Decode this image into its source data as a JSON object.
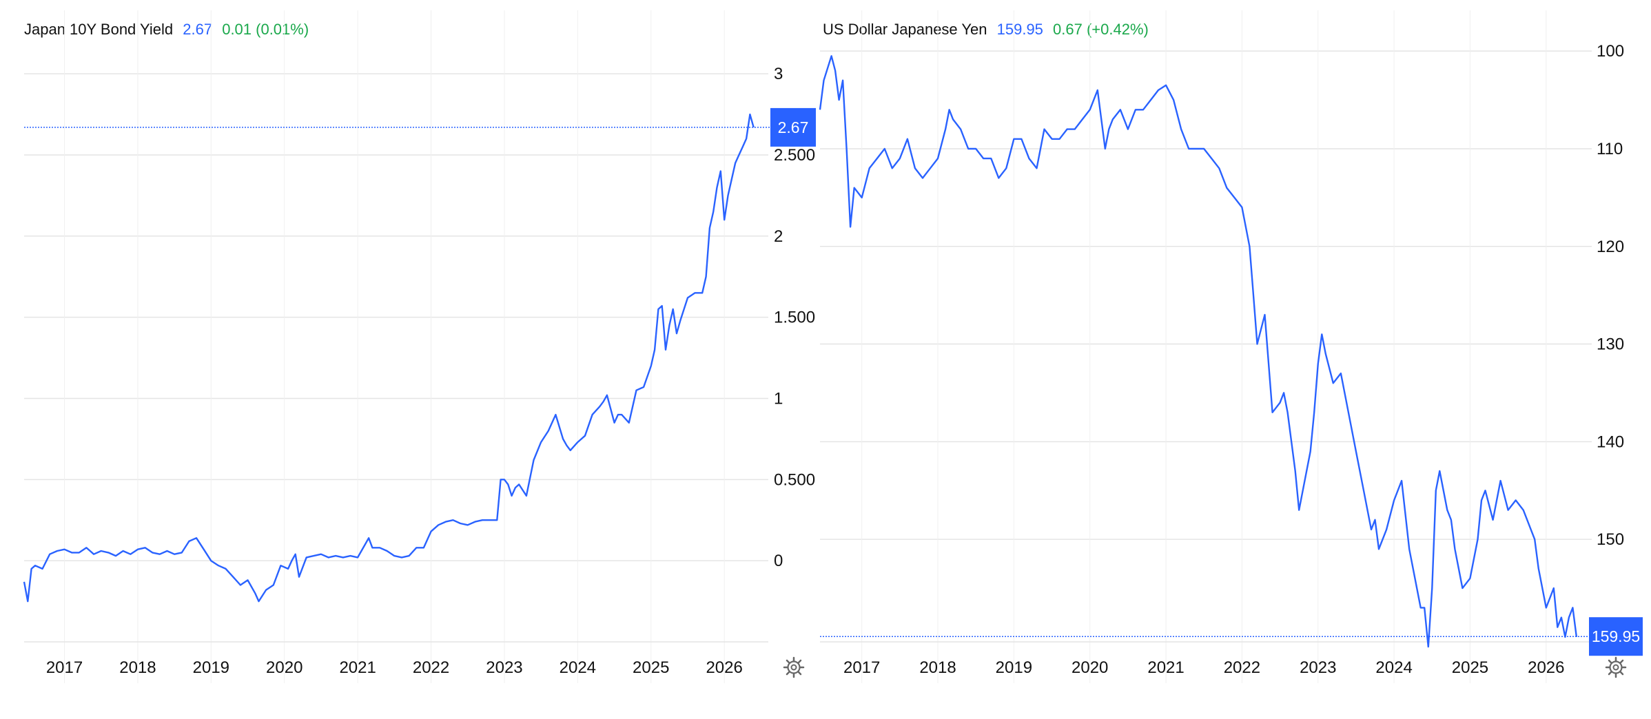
{
  "colors": {
    "line": "#2962ff",
    "up": "#1aa84b",
    "grid": "#e4e4e4",
    "badge": "#2962ff"
  },
  "icons": {
    "settings": "gear-icon"
  },
  "chart_data": [
    {
      "type": "line",
      "title": "Japan 10Y Bond Yield",
      "last_value": "2.67",
      "change": "0.01 (0.01%)",
      "badge_label": "2.67",
      "badge_value": 2.67,
      "xlim": [
        2016.45,
        2026.6
      ],
      "ylim": [
        -0.5,
        3.2
      ],
      "y_reversed": false,
      "x_ticks": [
        2017,
        2018,
        2019,
        2020,
        2021,
        2022,
        2023,
        2024,
        2025,
        2026
      ],
      "x_tick_labels": [
        "2017",
        "2018",
        "2019",
        "2020",
        "2021",
        "2022",
        "2023",
        "2024",
        "2025",
        "2026"
      ],
      "y_ticks": [
        0,
        0.5,
        1,
        1.5,
        2,
        2.5,
        3
      ],
      "y_tick_labels": [
        "0",
        "0.500",
        "1",
        "1.500",
        "2",
        "2.500",
        "3"
      ],
      "grid": true,
      "series": [
        {
          "x": [
            2016.45,
            2016.5,
            2016.55,
            2016.6,
            2016.7,
            2016.8,
            2016.9,
            2017.0,
            2017.1,
            2017.2,
            2017.3,
            2017.4,
            2017.5,
            2017.6,
            2017.7,
            2017.8,
            2017.9,
            2018.0,
            2018.1,
            2018.2,
            2018.3,
            2018.4,
            2018.5,
            2018.6,
            2018.7,
            2018.8,
            2018.9,
            2019.0,
            2019.1,
            2019.2,
            2019.3,
            2019.4,
            2019.5,
            2019.6,
            2019.65,
            2019.75,
            2019.85,
            2019.95,
            2020.05,
            2020.1,
            2020.15,
            2020.2,
            2020.3,
            2020.4,
            2020.5,
            2020.6,
            2020.7,
            2020.8,
            2020.9,
            2021.0,
            2021.1,
            2021.15,
            2021.2,
            2021.3,
            2021.4,
            2021.5,
            2021.6,
            2021.7,
            2021.8,
            2021.9,
            2022.0,
            2022.1,
            2022.2,
            2022.3,
            2022.4,
            2022.5,
            2022.6,
            2022.7,
            2022.8,
            2022.9,
            2022.95,
            2023.0,
            2023.05,
            2023.1,
            2023.15,
            2023.2,
            2023.3,
            2023.4,
            2023.5,
            2023.6,
            2023.7,
            2023.8,
            2023.85,
            2023.9,
            2024.0,
            2024.1,
            2024.2,
            2024.3,
            2024.35,
            2024.4,
            2024.5,
            2024.55,
            2024.6,
            2024.7,
            2024.8,
            2024.9,
            2025.0,
            2025.05,
            2025.1,
            2025.15,
            2025.2,
            2025.25,
            2025.3,
            2025.35,
            2025.4,
            2025.5,
            2025.6,
            2025.7,
            2025.75,
            2025.8,
            2025.85,
            2025.9,
            2025.95,
            2026.0,
            2026.05,
            2026.1,
            2026.15,
            2026.2,
            2026.25,
            2026.3,
            2026.35,
            2026.4
          ],
          "y": [
            -0.13,
            -0.25,
            -0.05,
            -0.03,
            -0.05,
            0.04,
            0.06,
            0.07,
            0.05,
            0.05,
            0.08,
            0.04,
            0.06,
            0.05,
            0.03,
            0.06,
            0.04,
            0.07,
            0.08,
            0.05,
            0.04,
            0.06,
            0.04,
            0.05,
            0.12,
            0.14,
            0.07,
            0.0,
            -0.03,
            -0.05,
            -0.1,
            -0.15,
            -0.12,
            -0.2,
            -0.25,
            -0.18,
            -0.15,
            -0.03,
            -0.05,
            0.0,
            0.04,
            -0.1,
            0.02,
            0.03,
            0.04,
            0.02,
            0.03,
            0.02,
            0.03,
            0.02,
            0.1,
            0.14,
            0.08,
            0.08,
            0.06,
            0.03,
            0.02,
            0.03,
            0.08,
            0.08,
            0.18,
            0.22,
            0.24,
            0.25,
            0.23,
            0.22,
            0.24,
            0.25,
            0.25,
            0.25,
            0.5,
            0.5,
            0.47,
            0.4,
            0.45,
            0.47,
            0.4,
            0.62,
            0.73,
            0.8,
            0.9,
            0.75,
            0.71,
            0.68,
            0.73,
            0.77,
            0.9,
            0.95,
            0.98,
            1.02,
            0.85,
            0.9,
            0.9,
            0.85,
            1.05,
            1.07,
            1.2,
            1.3,
            1.55,
            1.57,
            1.3,
            1.45,
            1.55,
            1.4,
            1.48,
            1.62,
            1.65,
            1.65,
            1.75,
            2.05,
            2.15,
            2.3,
            2.4,
            2.1,
            2.25,
            2.35,
            2.45,
            2.5,
            2.55,
            2.6,
            2.75,
            2.67
          ]
        }
      ]
    },
    {
      "type": "line",
      "title": "US Dollar Japanese Yen",
      "last_value": "159.95",
      "change": "0.67 (+0.42%)",
      "badge_label": "159.95",
      "badge_value": 159.95,
      "xlim": [
        2016.45,
        2026.6
      ],
      "ylim": [
        160.5,
        99.0
      ],
      "y_reversed": true,
      "x_ticks": [
        2017,
        2018,
        2019,
        2020,
        2021,
        2022,
        2023,
        2024,
        2025,
        2026
      ],
      "x_tick_labels": [
        "2017",
        "2018",
        "2019",
        "2020",
        "2021",
        "2022",
        "2023",
        "2024",
        "2025",
        "2026"
      ],
      "y_ticks": [
        100,
        110,
        120,
        130,
        140,
        150
      ],
      "y_tick_labels": [
        "100",
        "110",
        "120",
        "130",
        "140",
        "150"
      ],
      "grid": true,
      "series": [
        {
          "x": [
            2016.45,
            2016.5,
            2016.6,
            2016.65,
            2016.7,
            2016.75,
            2016.8,
            2016.85,
            2016.9,
            2017.0,
            2017.1,
            2017.2,
            2017.3,
            2017.4,
            2017.5,
            2017.6,
            2017.7,
            2017.8,
            2017.9,
            2018.0,
            2018.1,
            2018.15,
            2018.2,
            2018.3,
            2018.4,
            2018.5,
            2018.6,
            2018.7,
            2018.8,
            2018.9,
            2019.0,
            2019.1,
            2019.2,
            2019.3,
            2019.4,
            2019.5,
            2019.6,
            2019.7,
            2019.8,
            2019.9,
            2020.0,
            2020.1,
            2020.15,
            2020.2,
            2020.25,
            2020.3,
            2020.4,
            2020.5,
            2020.6,
            2020.7,
            2020.8,
            2020.9,
            2021.0,
            2021.1,
            2021.2,
            2021.3,
            2021.4,
            2021.5,
            2021.6,
            2021.7,
            2021.8,
            2021.9,
            2022.0,
            2022.1,
            2022.15,
            2022.2,
            2022.3,
            2022.4,
            2022.5,
            2022.55,
            2022.6,
            2022.7,
            2022.75,
            2022.8,
            2022.9,
            2022.95,
            2023.0,
            2023.05,
            2023.1,
            2023.2,
            2023.3,
            2023.4,
            2023.5,
            2023.6,
            2023.7,
            2023.75,
            2023.8,
            2023.9,
            2024.0,
            2024.1,
            2024.2,
            2024.3,
            2024.35,
            2024.4,
            2024.45,
            2024.5,
            2024.55,
            2024.6,
            2024.7,
            2024.75,
            2024.8,
            2024.9,
            2025.0,
            2025.1,
            2025.15,
            2025.2,
            2025.3,
            2025.35,
            2025.4,
            2025.5,
            2025.6,
            2025.7,
            2025.8,
            2025.85,
            2025.9,
            2025.95,
            2026.0,
            2026.1,
            2026.15,
            2026.2,
            2026.25,
            2026.3,
            2026.35,
            2026.4
          ],
          "y": [
            106,
            103,
            100.5,
            102,
            105,
            103,
            110,
            118,
            114,
            115,
            112,
            111,
            110,
            112,
            111,
            109,
            112,
            113,
            112,
            111,
            108,
            106,
            107,
            108,
            110,
            110,
            111,
            111,
            113,
            112,
            109,
            109,
            111,
            112,
            108,
            109,
            109,
            108,
            108,
            107,
            106,
            104,
            107,
            110,
            108,
            107,
            106,
            108,
            106,
            106,
            105,
            104,
            103.5,
            105,
            108,
            110,
            110,
            110,
            111,
            112,
            114,
            115,
            116,
            120,
            125,
            130,
            127,
            137,
            136,
            135,
            137,
            143,
            147,
            145,
            141,
            137,
            132,
            129,
            131,
            134,
            133,
            137,
            141,
            145,
            149,
            148,
            151,
            149,
            146,
            144,
            151,
            155,
            157,
            157,
            161,
            155,
            145,
            143,
            147,
            148,
            151,
            155,
            154,
            150,
            146,
            145,
            148,
            146,
            144,
            147,
            146,
            147,
            149,
            150,
            153,
            155,
            157,
            155,
            159,
            158,
            160,
            158,
            157,
            160
          ]
        }
      ]
    }
  ]
}
